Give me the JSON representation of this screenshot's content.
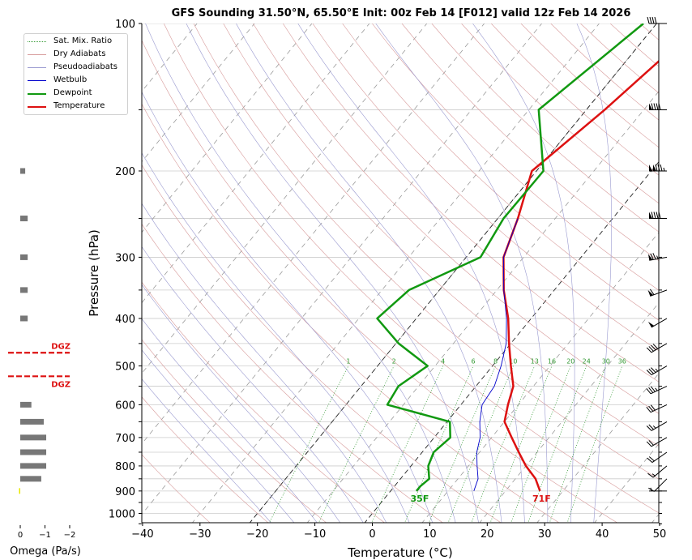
{
  "chart_data": {
    "type": "line",
    "title": "GFS Sounding 31.50°N, 65.50°E Init: 00z Feb 14 [F012] valid 12z Feb 14 2026",
    "xlabel": "Temperature (°C)",
    "ylabel": "Pressure (hPa)",
    "xlim": [
      -40,
      50
    ],
    "ylim": [
      1050,
      100
    ],
    "y_scale": "log",
    "x_ticks": [
      -40,
      -30,
      -20,
      -10,
      0,
      10,
      20,
      30,
      40,
      50
    ],
    "y_ticks": [
      100,
      200,
      300,
      400,
      500,
      600,
      700,
      800,
      900,
      1000
    ],
    "grid": true,
    "legend_position": "top-left outside",
    "legend": [
      "Sat. Mix. Ratio",
      "Dry Adiabats",
      "Pseudoadiabats",
      "Wetbulb",
      "Dewpoint",
      "Temperature"
    ],
    "mixing_ratio_labels": [
      "1",
      "2",
      "4",
      "6",
      "8",
      "10",
      "13",
      "16",
      "20",
      "24",
      "30",
      "36"
    ],
    "series": [
      {
        "name": "Temperature",
        "color": "#dd1111",
        "p": [
          900,
          850,
          800,
          750,
          700,
          650,
          600,
          550,
          500,
          450,
          400,
          350,
          300,
          250,
          200,
          150,
          100
        ],
        "t": [
          26,
          23.5,
          20,
          16.8,
          13.5,
          10,
          8.2,
          6.5,
          3.2,
          -0.3,
          -4,
          -8.8,
          -13.5,
          -16.5,
          -20.8,
          -16.8,
          -12.3
        ]
      },
      {
        "name": "Dewpoint",
        "color": "#119911",
        "p": [
          900,
          880,
          850,
          800,
          750,
          700,
          650,
          600,
          550,
          500,
          450,
          400,
          350,
          300,
          250,
          200,
          150,
          100
        ],
        "t": [
          4.5,
          4.5,
          5,
          3,
          2,
          2.8,
          0.5,
          -12.8,
          -13.5,
          -11.3,
          -19.5,
          -26.8,
          -25.3,
          -17.5,
          -19,
          -18.8,
          -28.3,
          -22.3
        ]
      },
      {
        "name": "Wetbulb",
        "color": "#0000cc",
        "p": [
          900,
          850,
          800,
          750,
          700,
          650,
          600,
          550,
          500,
          450,
          400,
          350,
          300,
          250
        ],
        "t": [
          14.5,
          13.5,
          11.5,
          9.5,
          8,
          5.7,
          3.7,
          3.2,
          1.5,
          -0.8,
          -4.3,
          -8.8,
          -13.5,
          -16.5
        ]
      }
    ],
    "surface_labels": {
      "temperature": "71F",
      "dewpoint": "35F"
    },
    "omega": {
      "xlabel": "Omega (Pa/s)",
      "x_ticks": [
        "0",
        "−1",
        "−2"
      ],
      "xlim": [
        0.3,
        -2.5
      ],
      "p": [
        200,
        250,
        300,
        350,
        400,
        600,
        650,
        700,
        750,
        800,
        850,
        900
      ],
      "values": [
        -0.2,
        -0.3,
        -0.3,
        -0.3,
        -0.3,
        -0.45,
        -0.95,
        -1.05,
        -1.05,
        -1.05,
        -0.85,
        0.05
      ],
      "dgz_label": "DGZ",
      "dgz_pressures": [
        470,
        525
      ]
    },
    "wind_barbs": [
      {
        "p": 100,
        "speed_kt": 40,
        "dir_deg": 270
      },
      {
        "p": 150,
        "speed_kt": 90,
        "dir_deg": 270
      },
      {
        "p": 200,
        "speed_kt": 135,
        "dir_deg": 270
      },
      {
        "p": 250,
        "speed_kt": 90,
        "dir_deg": 270
      },
      {
        "p": 300,
        "speed_kt": 75,
        "dir_deg": 260
      },
      {
        "p": 350,
        "speed_kt": 60,
        "dir_deg": 250
      },
      {
        "p": 400,
        "speed_kt": 50,
        "dir_deg": 240
      },
      {
        "p": 450,
        "speed_kt": 40,
        "dir_deg": 240
      },
      {
        "p": 500,
        "speed_kt": 35,
        "dir_deg": 240
      },
      {
        "p": 550,
        "speed_kt": 35,
        "dir_deg": 245
      },
      {
        "p": 600,
        "speed_kt": 30,
        "dir_deg": 245
      },
      {
        "p": 650,
        "speed_kt": 25,
        "dir_deg": 240
      },
      {
        "p": 700,
        "speed_kt": 20,
        "dir_deg": 240
      },
      {
        "p": 750,
        "speed_kt": 20,
        "dir_deg": 235
      },
      {
        "p": 800,
        "speed_kt": 15,
        "dir_deg": 230
      },
      {
        "p": 850,
        "speed_kt": 10,
        "dir_deg": 225
      },
      {
        "p": 900,
        "speed_kt": 5,
        "dir_deg": 270
      }
    ]
  }
}
